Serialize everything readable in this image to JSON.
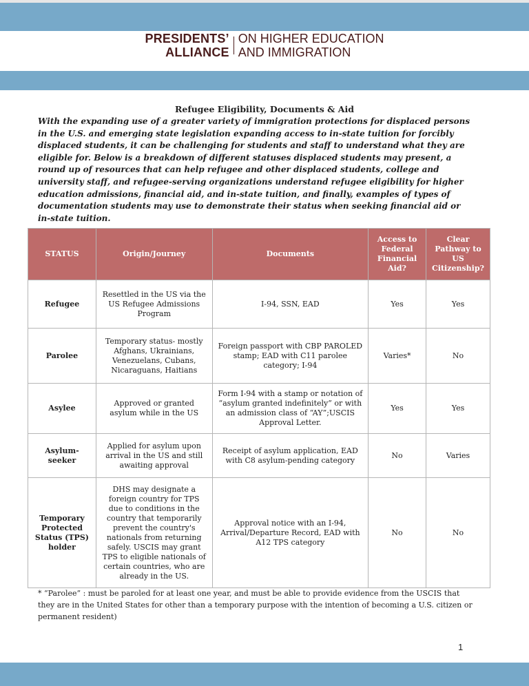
{
  "logo": {
    "left_line1": "PRESIDENTS’",
    "left_line2": "ALLIANCE",
    "right_line1": "ON HIGHER EDUCATION",
    "right_line2": "AND IMMIGRATION"
  },
  "title": "Refugee Eligibility, Documents & Aid",
  "intro": "With the expanding use of a greater variety of immigration protections for displaced persons in the U.S. and emerging state legislation expanding  access to in-state tuition for forcibly displaced students, it can be challenging for students and staff to understand what they are eligible for. Below is a breakdown of different statuses displaced students may present, a round up of resources that can help refugee and other displaced students, college and university staff, and refugee-serving organizations understand refugee eligibility for higher education admissions, financial aid, and in-state tuition, and finally, examples of types of documentation students may use to demonstrate their status when seeking financial aid or in-state tuition.",
  "table": {
    "headers": [
      "STATUS",
      "Origin/Journey",
      "Documents",
      "Access to Federal Financial Aid?",
      "Clear Pathway to US Citizenship?"
    ],
    "rows": [
      [
        "Refugee",
        "Resettled in the US via the US Refugee Admissions Program",
        "I-94, SSN, EAD",
        "Yes",
        "Yes"
      ],
      [
        "Parolee",
        "Temporary status- mostly Afghans, Ukrainians, Venezuelans, Cubans, Nicaraguans, Haitians",
        "Foreign passport with CBP PAROLED stamp; EAD with C11 parolee category; I-94",
        "Varies*",
        "No"
      ],
      [
        "Asylee",
        "Approved or granted asylum while in the US",
        "Form I-94 with a stamp or notation of “asylum granted indefinitely” or with an admission class of “AY”;USCIS Approval Letter.",
        "Yes",
        "Yes"
      ],
      [
        "Asylum- seeker",
        "Applied for asylum upon arrival in the US and still awaiting approval",
        "Receipt of asylum application, EAD with C8 asylum-pending category",
        "No",
        "Varies"
      ],
      [
        "Temporary Protected Status (TPS) holder",
        "DHS may designate a foreign country for TPS due to conditions in the country that temporarily prevent the country's nationals from returning safely. USCIS may grant TPS to eligible nationals of certain countries, who are already in the US.",
        "Approval notice with an I-94, Arrival/Departure Record, EAD with A12 TPS category",
        "No",
        "No"
      ]
    ]
  },
  "footnote": "* “Parolee” : must be paroled for at least one year, and  must be able to provide evidence from the USCIS that they are in the United States for other than a temporary purpose with the intention of becoming a U.S. citizen or permanent resident)",
  "page_number": "1",
  "colors": {
    "banner": "#77a9c9",
    "table_header": "#be6b6a",
    "logo": "#4a1c1c"
  }
}
